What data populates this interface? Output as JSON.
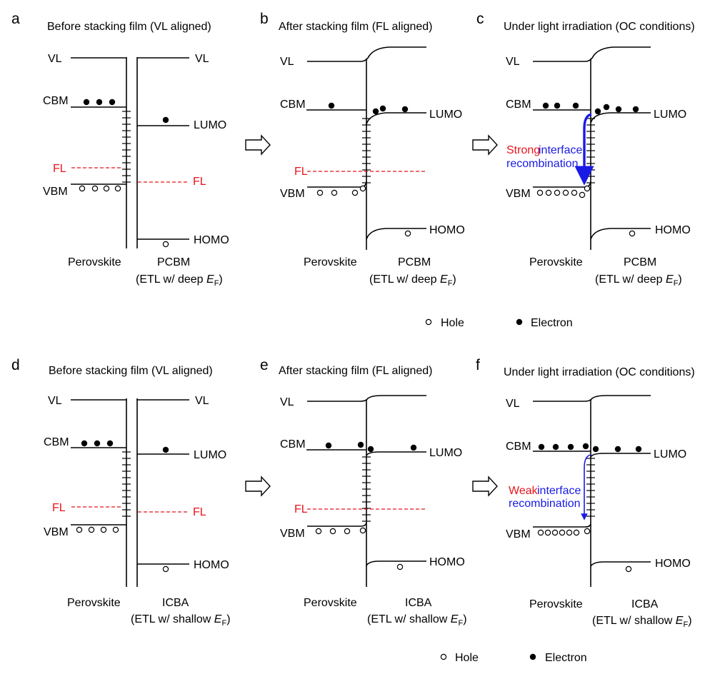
{
  "panels": {
    "a": {
      "letter": "a",
      "title": "Before stacking film (VL aligned)",
      "left": "Perovskite",
      "right": "PCBM",
      "etl": "(ETL w/ deep ",
      "ef": "E",
      "ef_sub": "F",
      "etl_close": ")"
    },
    "b": {
      "letter": "b",
      "title": "After stacking film (FL aligned)",
      "left": "Perovskite",
      "right": "PCBM",
      "etl": "(ETL w/ deep ",
      "ef": "E",
      "ef_sub": "F",
      "etl_close": ")"
    },
    "c": {
      "letter": "c",
      "title": "Under light irradiation (OC conditions)",
      "left": "Perovskite",
      "right": "PCBM",
      "etl": "(ETL w/ deep ",
      "ef": "E",
      "ef_sub": "F",
      "etl_close": ")",
      "note_red": "Strong",
      "note_blue1": "interface",
      "note_blue2": "recombination"
    },
    "d": {
      "letter": "d",
      "title": "Before stacking film (VL aligned)",
      "left": "Perovskite",
      "right": "ICBA",
      "etl": "(ETL w/ shallow ",
      "ef": "E",
      "ef_sub": "F",
      "etl_close": ")"
    },
    "e": {
      "letter": "e",
      "title": "After stacking film (FL aligned)",
      "left": "Perovskite",
      "right": "ICBA",
      "etl": "(ETL w/ shallow ",
      "ef": "E",
      "ef_sub": "F",
      "etl_close": ")"
    },
    "f": {
      "letter": "f",
      "title": "Under light irradiation (OC conditions)",
      "left": "Perovskite",
      "right": "ICBA",
      "etl": "(ETL w/ shallow ",
      "ef": "E",
      "ef_sub": "F",
      "etl_close": ")",
      "note_red": "Weak",
      "note_blue1": "interface",
      "note_blue2": "recombination"
    }
  },
  "levels": {
    "vl": "VL",
    "cbm": "CBM",
    "vbm": "VBM",
    "fl": "FL",
    "lumo": "LUMO",
    "homo": "HOMO"
  },
  "legend": {
    "hole": "Hole",
    "electron": "Electron"
  },
  "colors": {
    "fermi": "#e8141c",
    "recombination_arrow": "#1a1ae6",
    "note_strong": "#e8141c",
    "note_blue": "#1a1ae6"
  }
}
